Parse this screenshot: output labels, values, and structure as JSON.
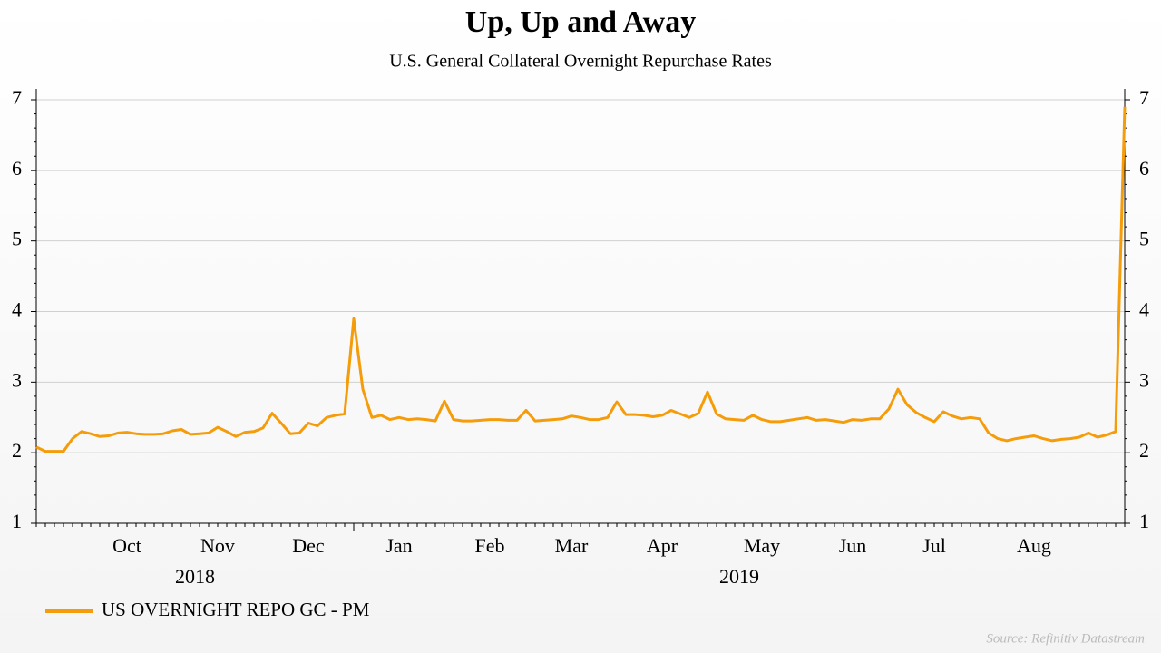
{
  "chart_data": {
    "type": "line",
    "title": "Up, Up and Away",
    "subtitle": "U.S. General Collateral Overnight Repurchase Rates",
    "source": "Source: Refinitiv Datastream",
    "categories": [
      null,
      null,
      null,
      null,
      null,
      null,
      null,
      null,
      null,
      null,
      "Oct",
      null,
      null,
      null,
      null,
      null,
      null,
      null,
      null,
      null,
      "Nov",
      null,
      null,
      null,
      null,
      null,
      null,
      null,
      null,
      null,
      "Dec",
      null,
      null,
      null,
      null,
      null,
      null,
      null,
      null,
      null,
      "Jan",
      null,
      null,
      null,
      null,
      null,
      null,
      null,
      null,
      null,
      "Feb",
      null,
      null,
      null,
      null,
      null,
      null,
      null,
      null,
      "Mar",
      null,
      null,
      null,
      null,
      null,
      null,
      null,
      null,
      null,
      "Apr",
      null,
      null,
      null,
      null,
      null,
      null,
      null,
      null,
      null,
      null,
      "May",
      null,
      null,
      null,
      null,
      null,
      null,
      null,
      null,
      null,
      "Jun",
      null,
      null,
      null,
      null,
      null,
      null,
      null,
      null,
      "Jul",
      null,
      null,
      null,
      null,
      null,
      null,
      null,
      null,
      null,
      null,
      "Aug",
      null,
      null,
      null,
      null,
      null,
      null,
      null,
      null,
      null,
      null
    ],
    "years": [
      "2018",
      "2019"
    ],
    "series": [
      {
        "name": "US OVERNIGHT REPO GC - PM",
        "color": "#f59c0a",
        "values": [
          2.08,
          2.02,
          2.02,
          2.02,
          2.2,
          2.3,
          2.27,
          2.23,
          2.24,
          2.28,
          2.29,
          2.27,
          2.26,
          2.26,
          2.27,
          2.31,
          2.33,
          2.26,
          2.27,
          2.28,
          2.36,
          2.3,
          2.23,
          2.29,
          2.3,
          2.35,
          2.56,
          2.42,
          2.27,
          2.28,
          2.42,
          2.38,
          2.5,
          2.53,
          2.55,
          3.9,
          2.9,
          2.5,
          2.53,
          2.47,
          2.5,
          2.47,
          2.48,
          2.47,
          2.45,
          2.73,
          2.47,
          2.45,
          2.45,
          2.46,
          2.47,
          2.47,
          2.46,
          2.46,
          2.6,
          2.45,
          2.46,
          2.47,
          2.48,
          2.52,
          2.5,
          2.47,
          2.47,
          2.5,
          2.72,
          2.54,
          2.54,
          2.53,
          2.51,
          2.53,
          2.6,
          2.55,
          2.5,
          2.56,
          2.86,
          2.55,
          2.48,
          2.47,
          2.46,
          2.53,
          2.47,
          2.44,
          2.44,
          2.46,
          2.48,
          2.5,
          2.46,
          2.47,
          2.45,
          2.43,
          2.47,
          2.46,
          2.48,
          2.48,
          2.62,
          2.9,
          2.68,
          2.57,
          2.5,
          2.44,
          2.58,
          2.52,
          2.48,
          2.5,
          2.48,
          2.28,
          2.2,
          2.17,
          2.2,
          2.22,
          2.24,
          2.2,
          2.17,
          2.19,
          2.2,
          2.22,
          2.28,
          2.22,
          2.25,
          2.3,
          6.9
        ]
      }
    ],
    "ylim": [
      1,
      7
    ],
    "yticks": [
      1,
      2,
      3,
      4,
      5,
      6,
      7
    ],
    "grid": true
  }
}
